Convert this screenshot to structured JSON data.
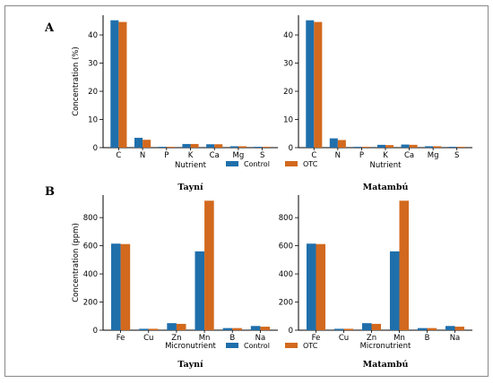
{
  "figure": {
    "panel_letters": [
      "A",
      "B"
    ],
    "border_color": "#888888"
  },
  "colors": {
    "control": "#1f6fab",
    "otc": "#d2691e"
  },
  "chart_data": [
    {
      "type": "bar",
      "panel": "A",
      "subplot": "Tayní",
      "title": "Tayní",
      "xlabel": "Nutrient",
      "ylabel": "Concentration (%)",
      "ylim": [
        0,
        47
      ],
      "yticks": [
        0,
        10,
        20,
        30,
        40
      ],
      "categories": [
        "C",
        "N",
        "P",
        "K",
        "Ca",
        "Mg",
        "S"
      ],
      "series": [
        {
          "name": "Control",
          "values": [
            45.2,
            3.5,
            0.3,
            1.3,
            1.2,
            0.5,
            0.3
          ]
        },
        {
          "name": "OTC",
          "values": [
            44.6,
            2.8,
            0.3,
            1.3,
            1.2,
            0.5,
            0.3
          ]
        }
      ],
      "legend": "bottom-center"
    },
    {
      "type": "bar",
      "panel": "A",
      "subplot": "Matambú",
      "title": "Matambú",
      "xlabel": "Nutrient",
      "ylabel": "",
      "ylim": [
        0,
        47
      ],
      "yticks": [
        0,
        10,
        20,
        30,
        40
      ],
      "categories": [
        "C",
        "N",
        "P",
        "K",
        "Ca",
        "Mg",
        "S"
      ],
      "series": [
        {
          "name": "Control",
          "values": [
            45.2,
            3.3,
            0.3,
            1.0,
            1.1,
            0.5,
            0.3
          ]
        },
        {
          "name": "OTC",
          "values": [
            44.6,
            2.7,
            0.3,
            0.9,
            1.0,
            0.5,
            0.3
          ]
        }
      ],
      "legend": "bottom-center"
    },
    {
      "type": "bar",
      "panel": "B",
      "subplot": "Tayní",
      "title": "Tayní",
      "xlabel": "Micronutrient",
      "ylabel": "Concentration (ppm)",
      "ylim": [
        0,
        960
      ],
      "yticks": [
        0,
        200,
        400,
        600,
        800
      ],
      "categories": [
        "Fe",
        "Cu",
        "Zn",
        "Mn",
        "B",
        "Na"
      ],
      "series": [
        {
          "name": "Control",
          "values": [
            615,
            10,
            50,
            560,
            15,
            30
          ]
        },
        {
          "name": "OTC",
          "values": [
            612,
            10,
            45,
            920,
            15,
            25
          ]
        }
      ],
      "legend": "bottom-center"
    },
    {
      "type": "bar",
      "panel": "B",
      "subplot": "Matambú",
      "title": "Matambú",
      "xlabel": "Micronutrient",
      "ylabel": "",
      "ylim": [
        0,
        960
      ],
      "yticks": [
        0,
        200,
        400,
        600,
        800
      ],
      "categories": [
        "Fe",
        "Cu",
        "Zn",
        "Mn",
        "B",
        "Na"
      ],
      "series": [
        {
          "name": "Control",
          "values": [
            615,
            10,
            50,
            560,
            15,
            30
          ]
        },
        {
          "name": "OTC",
          "values": [
            612,
            10,
            45,
            920,
            15,
            25
          ]
        }
      ],
      "legend": "bottom-center"
    }
  ]
}
